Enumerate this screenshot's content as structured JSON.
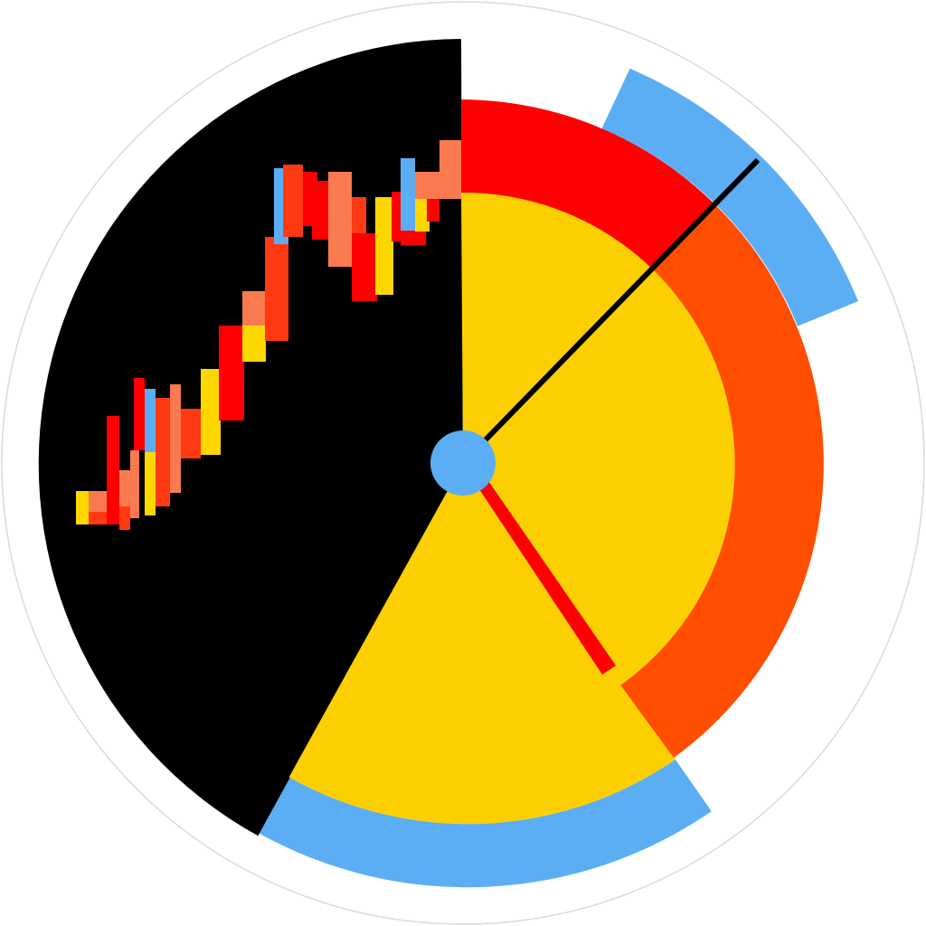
{
  "colors": {
    "background": "#ffffff",
    "outline": "#4a4a9a",
    "black": "#000000",
    "yellow": "#fccf03",
    "red": "#ff0000",
    "orange_red": "#ff4e00",
    "sky_blue": "#5caef4",
    "salmon": "#fa7a50",
    "bar_red_orange": "#ff3a12",
    "bar_yellow": "#ffd700"
  },
  "icons": {
    "center_hub": "circle-hub-icon",
    "long_hand": "line-hand-icon",
    "short_hand": "wedge-hand-icon"
  }
}
